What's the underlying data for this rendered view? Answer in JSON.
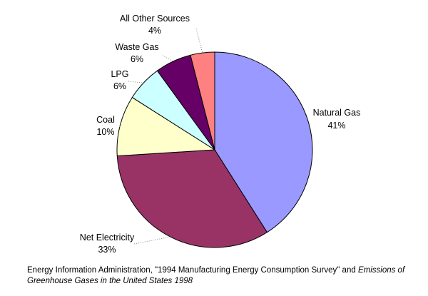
{
  "chart_data": {
    "type": "pie",
    "slices": [
      {
        "label": "Natural Gas",
        "value": 41,
        "value_label": "41%",
        "color": "#9999ff"
      },
      {
        "label": "Net Electricity",
        "value": 33,
        "value_label": "33%",
        "color": "#993366"
      },
      {
        "label": "Coal",
        "value": 10,
        "value_label": "10%",
        "color": "#ffffcc"
      },
      {
        "label": "LPG",
        "value": 6,
        "value_label": "6%",
        "color": "#ccffff"
      },
      {
        "label": "Waste Gas",
        "value": 6,
        "value_label": "6%",
        "color": "#660066"
      },
      {
        "label": "All Other Sources",
        "value": 4,
        "value_label": "4%",
        "color": "#ff8080"
      }
    ]
  },
  "source": {
    "prefix": "Energy Information Administration, \"1994 Manufacturing Energy Consumption Survey\" and ",
    "italic": "Emissions of Greenhouse Gases in the United States 1998"
  }
}
